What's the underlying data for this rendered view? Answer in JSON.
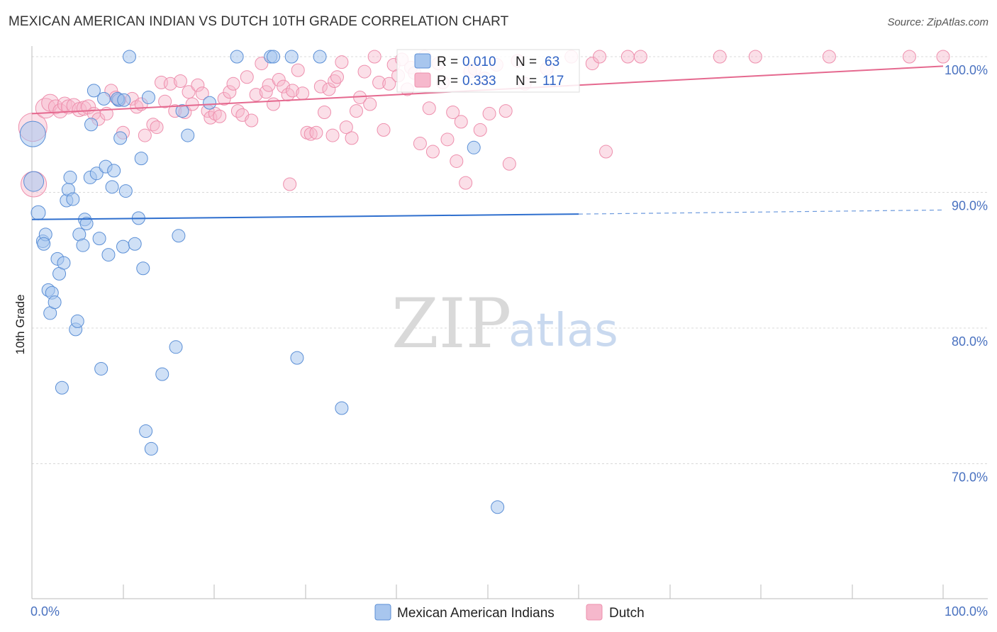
{
  "title": "MEXICAN AMERICAN INDIAN VS DUTCH 10TH GRADE CORRELATION CHART",
  "source": "Source: ZipAtlas.com",
  "watermark": {
    "zip": "ZIP",
    "atlas": "atlas"
  },
  "colors": {
    "blue_fill": "#a8c6ee",
    "blue_stroke": "#5b8fd6",
    "blue_line": "#2f6fce",
    "pink_fill": "#f6b8cc",
    "pink_stroke": "#ee8fad",
    "pink_line": "#e5698f",
    "grid": "#d8d8d8",
    "axis_label": "#4a72c0"
  },
  "legend_top": {
    "rows": [
      {
        "r_label": "R =",
        "r_value": "0.010",
        "n_label": "N =",
        "n_value": "63"
      },
      {
        "r_label": "R =",
        "r_value": "0.333",
        "n_label": "N =",
        "n_value": "117"
      }
    ]
  },
  "legend_bottom": {
    "items": [
      {
        "label": "Mexican American Indians"
      },
      {
        "label": "Dutch"
      }
    ]
  },
  "chart_data": {
    "type": "scatter",
    "title": "MEXICAN AMERICAN INDIAN VS DUTCH 10TH GRADE CORRELATION CHART",
    "xlabel": "",
    "ylabel": "10th Grade",
    "xlim": [
      0,
      100
    ],
    "ylim": [
      59,
      101.5
    ],
    "x_tick_labels": [
      "0.0%",
      "100.0%"
    ],
    "y_ticks": [
      {
        "value": 70,
        "label": "70.0%"
      },
      {
        "value": 80,
        "label": "80.0%"
      },
      {
        "value": 90,
        "label": "90.0%"
      },
      {
        "value": 100,
        "label": "100.0%"
      }
    ],
    "grid": true,
    "legend_position": "top-center",
    "series": [
      {
        "name": "Mexican American Indians",
        "color": "#a8c6ee",
        "R": 0.01,
        "N": 63,
        "trend": {
          "x0": 0,
          "y0": 88.0,
          "x1": 60,
          "y1": 88.4,
          "dash_to": 100,
          "dash_y": 88.7
        },
        "points": [
          [
            0.1,
            94.3,
            18
          ],
          [
            0.2,
            90.8,
            14
          ],
          [
            0.7,
            88.5,
            10
          ],
          [
            1.2,
            86.4,
            9
          ],
          [
            1.5,
            86.9,
            9
          ],
          [
            1.3,
            86.2,
            9
          ],
          [
            1.8,
            82.8,
            9
          ],
          [
            2.2,
            82.6,
            9
          ],
          [
            2.0,
            81.1,
            9
          ],
          [
            2.5,
            81.9,
            9
          ],
          [
            2.8,
            85.1,
            9
          ],
          [
            3.0,
            84.0,
            9
          ],
          [
            3.5,
            84.8,
            9
          ],
          [
            3.3,
            75.6,
            9
          ],
          [
            3.8,
            89.4,
            9
          ],
          [
            4.0,
            90.2,
            9
          ],
          [
            4.2,
            91.1,
            9
          ],
          [
            4.5,
            89.5,
            9
          ],
          [
            4.8,
            79.9,
            9
          ],
          [
            5.0,
            80.5,
            9
          ],
          [
            5.2,
            86.9,
            9
          ],
          [
            5.6,
            86.1,
            9
          ],
          [
            5.8,
            88.0,
            9
          ],
          [
            6.0,
            87.7,
            9
          ],
          [
            6.4,
            91.1,
            9
          ],
          [
            6.5,
            95.0,
            9
          ],
          [
            6.8,
            97.5,
            9
          ],
          [
            7.1,
            91.4,
            9
          ],
          [
            7.4,
            86.6,
            9
          ],
          [
            7.6,
            77.0,
            9
          ],
          [
            7.9,
            96.9,
            9
          ],
          [
            8.1,
            91.9,
            9
          ],
          [
            8.4,
            85.4,
            9
          ],
          [
            8.8,
            90.4,
            9
          ],
          [
            9.0,
            91.6,
            9
          ],
          [
            9.5,
            96.8,
            9
          ],
          [
            9.7,
            94.0,
            9
          ],
          [
            9.4,
            96.9,
            9
          ],
          [
            10.1,
            96.8,
            9
          ],
          [
            10.0,
            86.0,
            9
          ],
          [
            10.3,
            90.1,
            9
          ],
          [
            10.7,
            100.0,
            9
          ],
          [
            11.3,
            86.2,
            9
          ],
          [
            11.7,
            88.1,
            9
          ],
          [
            12.0,
            92.5,
            9
          ],
          [
            12.2,
            84.4,
            9
          ],
          [
            12.5,
            72.4,
            9
          ],
          [
            12.8,
            97.0,
            9
          ],
          [
            13.1,
            71.1,
            9
          ],
          [
            14.3,
            76.6,
            9
          ],
          [
            15.8,
            78.6,
            9
          ],
          [
            16.1,
            86.8,
            9
          ],
          [
            16.5,
            96.0,
            9
          ],
          [
            17.1,
            94.2,
            9
          ],
          [
            19.5,
            96.6,
            9
          ],
          [
            22.5,
            100.0,
            9
          ],
          [
            26.2,
            100.0,
            9
          ],
          [
            26.5,
            100.0,
            9
          ],
          [
            28.5,
            100.0,
            9
          ],
          [
            29.1,
            77.8,
            9
          ],
          [
            31.6,
            100.0,
            9
          ],
          [
            34.0,
            74.1,
            9
          ],
          [
            48.5,
            93.3,
            9
          ],
          [
            51.1,
            66.8,
            9
          ]
        ]
      },
      {
        "name": "Dutch",
        "color": "#f6b8cc",
        "R": 0.333,
        "N": 117,
        "trend": {
          "x0": 0,
          "y0": 95.8,
          "x1": 100,
          "y1": 99.3
        },
        "points": [
          [
            0.1,
            94.8,
            20
          ],
          [
            0.2,
            90.6,
            18
          ],
          [
            1.5,
            96.2,
            14
          ],
          [
            2.0,
            96.6,
            12
          ],
          [
            2.6,
            96.3,
            10
          ],
          [
            3.1,
            96.0,
            10
          ],
          [
            3.6,
            96.5,
            10
          ],
          [
            4.0,
            96.3,
            10
          ],
          [
            4.6,
            96.4,
            10
          ],
          [
            5.2,
            96.1,
            10
          ],
          [
            5.7,
            96.2,
            10
          ],
          [
            6.2,
            96.3,
            10
          ],
          [
            6.8,
            95.8,
            9
          ],
          [
            7.3,
            95.4,
            9
          ],
          [
            8.2,
            95.8,
            9
          ],
          [
            8.7,
            97.5,
            9
          ],
          [
            9.2,
            97.0,
            9
          ],
          [
            9.6,
            96.8,
            9
          ],
          [
            10.0,
            94.4,
            9
          ],
          [
            11.0,
            96.9,
            9
          ],
          [
            11.5,
            96.3,
            9
          ],
          [
            12.0,
            96.5,
            9
          ],
          [
            12.4,
            94.2,
            9
          ],
          [
            13.3,
            95.0,
            9
          ],
          [
            13.7,
            94.8,
            9
          ],
          [
            14.2,
            98.1,
            9
          ],
          [
            14.6,
            96.7,
            9
          ],
          [
            15.2,
            98.0,
            9
          ],
          [
            15.7,
            96.0,
            9
          ],
          [
            16.3,
            98.2,
            9
          ],
          [
            16.8,
            95.9,
            9
          ],
          [
            17.2,
            97.4,
            9
          ],
          [
            17.6,
            96.5,
            9
          ],
          [
            18.2,
            97.9,
            9
          ],
          [
            18.7,
            97.3,
            9
          ],
          [
            19.3,
            96.0,
            9
          ],
          [
            19.6,
            95.5,
            9
          ],
          [
            20.1,
            95.8,
            9
          ],
          [
            20.6,
            95.6,
            9
          ],
          [
            21.1,
            96.9,
            9
          ],
          [
            21.7,
            97.4,
            9
          ],
          [
            22.1,
            98.0,
            9
          ],
          [
            22.6,
            96.0,
            9
          ],
          [
            23.1,
            95.7,
            9
          ],
          [
            23.6,
            98.5,
            9
          ],
          [
            24.1,
            95.3,
            9
          ],
          [
            24.6,
            97.2,
            9
          ],
          [
            25.2,
            99.5,
            9
          ],
          [
            25.7,
            97.4,
            9
          ],
          [
            26.0,
            97.9,
            9
          ],
          [
            26.5,
            96.5,
            9
          ],
          [
            27.1,
            98.3,
            9
          ],
          [
            27.6,
            97.8,
            9
          ],
          [
            28.1,
            97.2,
            9
          ],
          [
            28.6,
            97.5,
            9
          ],
          [
            29.2,
            99.0,
            9
          ],
          [
            29.7,
            97.3,
            9
          ],
          [
            30.2,
            94.4,
            9
          ],
          [
            30.6,
            94.3,
            9
          ],
          [
            31.2,
            94.4,
            9
          ],
          [
            31.7,
            97.8,
            9
          ],
          [
            32.1,
            95.9,
            9
          ],
          [
            32.6,
            97.6,
            9
          ],
          [
            33.2,
            98.2,
            9
          ],
          [
            33.5,
            98.5,
            9
          ],
          [
            34.0,
            99.6,
            9
          ],
          [
            34.5,
            94.8,
            9
          ],
          [
            35.1,
            94.0,
            9
          ],
          [
            35.6,
            96.0,
            9
          ],
          [
            36.0,
            97.0,
            9
          ],
          [
            36.5,
            98.9,
            9
          ],
          [
            37.1,
            96.5,
            9
          ],
          [
            37.6,
            100.0,
            9
          ],
          [
            38.1,
            98.1,
            9
          ],
          [
            38.6,
            94.6,
            9
          ],
          [
            39.2,
            98.0,
            9
          ],
          [
            39.7,
            99.4,
            9
          ],
          [
            40.2,
            98.6,
            9
          ],
          [
            40.6,
            99.8,
            9
          ],
          [
            41.2,
            97.6,
            9
          ],
          [
            41.6,
            99.2,
            9
          ],
          [
            42.0,
            98.8,
            9
          ],
          [
            42.6,
            93.6,
            9
          ],
          [
            43.1,
            100.0,
            9
          ],
          [
            43.6,
            96.2,
            9
          ],
          [
            44.0,
            93.0,
            9
          ],
          [
            44.6,
            99.5,
            9
          ],
          [
            45.1,
            98.1,
            9
          ],
          [
            45.6,
            93.9,
            9
          ],
          [
            46.2,
            95.9,
            9
          ],
          [
            46.6,
            92.3,
            9
          ],
          [
            47.1,
            95.2,
            9
          ],
          [
            47.6,
            90.7,
            9
          ],
          [
            48.1,
            98.9,
            9
          ],
          [
            48.6,
            99.1,
            9
          ],
          [
            49.2,
            94.6,
            9
          ],
          [
            49.7,
            98.4,
            9
          ],
          [
            50.2,
            95.8,
            9
          ],
          [
            51.0,
            99.4,
            9
          ],
          [
            52.0,
            96.0,
            9
          ],
          [
            52.4,
            92.1,
            9
          ],
          [
            53.3,
            99.7,
            9
          ],
          [
            54.1,
            98.0,
            9
          ],
          [
            56.5,
            99.1,
            9
          ],
          [
            59.2,
            100.0,
            9
          ],
          [
            61.5,
            99.5,
            9
          ],
          [
            62.3,
            100.0,
            9
          ],
          [
            63.0,
            93.0,
            9
          ],
          [
            65.4,
            100.0,
            9
          ],
          [
            66.8,
            100.0,
            9
          ],
          [
            75.5,
            100.0,
            9
          ],
          [
            79.4,
            100.0,
            9
          ],
          [
            87.5,
            100.0,
            9
          ],
          [
            96.3,
            100.0,
            9
          ],
          [
            100.0,
            100.0,
            9
          ],
          [
            28.3,
            90.6,
            9
          ],
          [
            33.0,
            94.2,
            9
          ]
        ]
      }
    ]
  }
}
